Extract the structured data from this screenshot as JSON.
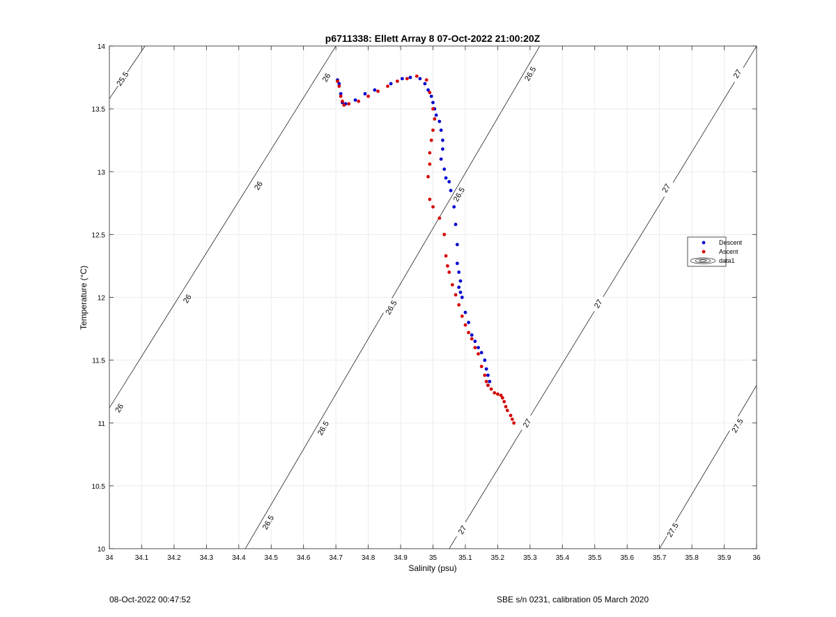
{
  "chart_data": {
    "type": "scatter",
    "title": "p6711338: Ellett Array 8 07-Oct-2022 21:00:20Z",
    "xlabel": "Salinity (psu)",
    "ylabel": "Temperature (°C)",
    "xlim": [
      34,
      36
    ],
    "ylim": [
      10,
      14
    ],
    "xticks": [
      34,
      34.1,
      34.2,
      34.3,
      34.4,
      34.5,
      34.6,
      34.7,
      34.8,
      34.9,
      35,
      35.1,
      35.2,
      35.3,
      35.4,
      35.5,
      35.6,
      35.7,
      35.8,
      35.9,
      36
    ],
    "xtick_labels": [
      "34",
      "34.1",
      "34.2",
      "34.3",
      "34.4",
      "34.5",
      "34.6",
      "34.7",
      "34.8",
      "34.9",
      "35",
      "35.1",
      "35.2",
      "35.3",
      "35.4",
      "35.5",
      "35.6",
      "35.7",
      "35.8",
      "35.9",
      "36"
    ],
    "yticks": [
      10,
      10.5,
      11,
      11.5,
      12,
      12.5,
      13,
      13.5,
      14
    ],
    "ytick_labels": [
      "10",
      "10.5",
      "11",
      "11.5",
      "12",
      "12.5",
      "13",
      "13.5",
      "14"
    ],
    "grid": true,
    "legend_position": "right",
    "series": [
      {
        "name": "Descent",
        "color": "#0000cc",
        "x": [
          34.705,
          34.71,
          34.715,
          34.72,
          34.73,
          34.76,
          34.79,
          34.82,
          34.87,
          34.905,
          34.93,
          34.96,
          34.975,
          34.985,
          34.995,
          35.0,
          35.005,
          35.01,
          35.02,
          35.025,
          35.03,
          35.03,
          35.025,
          35.035,
          35.04,
          35.05,
          35.055,
          35.065,
          35.07,
          35.075,
          35.075,
          35.08,
          35.085,
          35.08,
          35.085,
          35.09,
          35.1,
          35.11,
          35.12,
          35.13,
          35.14,
          35.15,
          35.16,
          35.165,
          35.17,
          35.175,
          35.17
        ],
        "y": [
          13.73,
          13.7,
          13.62,
          13.55,
          13.54,
          13.57,
          13.62,
          13.65,
          13.7,
          13.74,
          13.75,
          13.74,
          13.7,
          13.65,
          13.6,
          13.55,
          13.5,
          13.45,
          13.4,
          13.33,
          13.25,
          13.18,
          13.1,
          13.02,
          12.95,
          12.92,
          12.85,
          12.72,
          12.58,
          12.42,
          12.27,
          12.2,
          12.13,
          12.08,
          12.04,
          12.0,
          11.88,
          11.8,
          11.7,
          11.65,
          11.6,
          11.56,
          11.5,
          11.43,
          11.38,
          11.33,
          11.3
        ]
      },
      {
        "name": "Ascent",
        "color": "#d40000",
        "x": [
          34.705,
          34.71,
          34.715,
          34.72,
          34.725,
          34.74,
          34.77,
          34.8,
          34.83,
          34.86,
          34.89,
          34.92,
          34.95,
          34.98,
          34.99,
          35.0,
          35.005,
          35.0,
          34.995,
          34.99,
          34.99,
          34.985,
          34.99,
          35.0,
          35.02,
          35.035,
          35.04,
          35.045,
          35.05,
          35.06,
          35.07,
          35.08,
          35.09,
          35.1,
          35.11,
          35.12,
          35.13,
          35.14,
          35.15,
          35.16,
          35.165,
          35.17,
          35.18,
          35.19,
          35.2,
          35.21,
          35.215,
          35.22,
          35.225,
          35.23,
          35.24,
          35.245,
          35.25
        ],
        "y": [
          13.72,
          13.68,
          13.6,
          13.56,
          13.53,
          13.54,
          13.56,
          13.6,
          13.64,
          13.68,
          13.72,
          13.74,
          13.76,
          13.73,
          13.63,
          13.5,
          13.42,
          13.33,
          13.25,
          13.15,
          13.06,
          12.96,
          12.78,
          12.72,
          12.63,
          12.5,
          12.33,
          12.25,
          12.2,
          12.1,
          12.02,
          11.94,
          11.85,
          11.78,
          11.72,
          11.67,
          11.6,
          11.55,
          11.45,
          11.38,
          11.33,
          11.3,
          11.27,
          11.24,
          11.23,
          11.22,
          11.2,
          11.17,
          11.13,
          11.1,
          11.06,
          11.03,
          11.0
        ]
      },
      {
        "name": "data1",
        "color": "#000000",
        "contours": [
          {
            "level": "25.5",
            "points": [
              [
                34.0,
                13.58
              ],
              [
                34.11,
                14.0
              ]
            ],
            "labels": [
              [
                34.04,
                13.74
              ]
            ]
          },
          {
            "level": "26",
            "points": [
              [
                34.0,
                11.12
              ],
              [
                34.7,
                14.0
              ]
            ],
            "labels": [
              [
                34.03,
                11.12
              ],
              [
                34.24,
                11.99
              ],
              [
                34.46,
                12.89
              ],
              [
                34.67,
                13.75
              ]
            ]
          },
          {
            "level": "26.5",
            "points": [
              [
                34.42,
                10.0
              ],
              [
                35.33,
                14.0
              ]
            ],
            "labels": [
              [
                34.49,
                10.21
              ],
              [
                34.66,
                10.96
              ],
              [
                34.87,
                11.92
              ],
              [
                35.08,
                12.82
              ],
              [
                35.3,
                13.78
              ]
            ]
          },
          {
            "level": "27",
            "points": [
              [
                35.05,
                10.0
              ],
              [
                36.0,
                14.0
              ]
            ],
            "labels": [
              [
                35.09,
                10.15
              ],
              [
                35.29,
                11.0
              ],
              [
                35.51,
                11.95
              ],
              [
                35.72,
                12.87
              ],
              [
                35.94,
                13.78
              ]
            ]
          },
          {
            "level": "27.5",
            "points": [
              [
                35.7,
                10.0
              ],
              [
                36.0,
                11.3
              ]
            ],
            "labels": [
              [
                35.74,
                10.15
              ],
              [
                35.94,
                10.98
              ]
            ]
          }
        ]
      }
    ]
  },
  "footer": {
    "timestamp": "08-Oct-2022 00:47:52",
    "calibration": "SBE s/n 0231, calibration 05 March 2020"
  }
}
